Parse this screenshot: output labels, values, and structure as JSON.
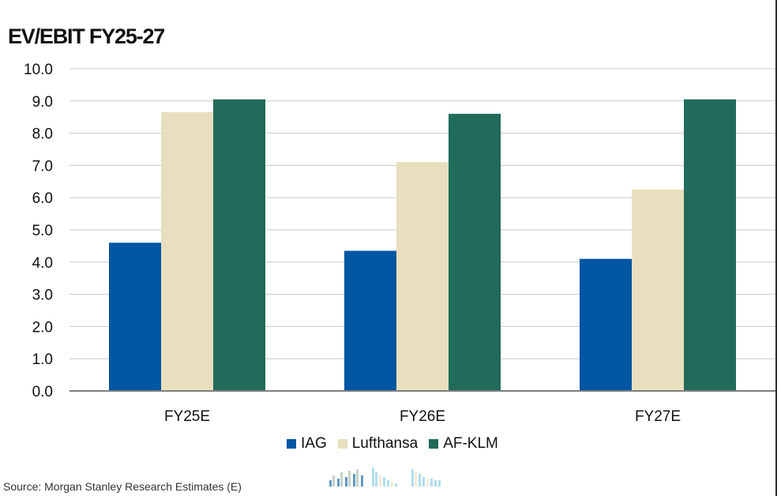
{
  "title": "EV/EBIT FY25-27",
  "source": "Source: Morgan Stanley Research Estimates (E)",
  "chart_data": {
    "type": "bar",
    "title": "EV/EBIT FY25-27",
    "categories": [
      "FY25E",
      "FY26E",
      "FY27E"
    ],
    "series": [
      {
        "name": "IAG",
        "color": "#0056a3",
        "values": [
          4.6,
          4.35,
          4.1
        ]
      },
      {
        "name": "Lufthansa",
        "color": "#e8dfbe",
        "values": [
          8.65,
          7.1,
          6.25
        ]
      },
      {
        "name": "AF-KLM",
        "color": "#216b5b",
        "values": [
          9.05,
          8.6,
          9.05
        ]
      }
    ],
    "ylim": [
      0,
      10
    ],
    "yticks": [
      "0.0",
      "1.0",
      "2.0",
      "3.0",
      "4.0",
      "5.0",
      "6.0",
      "7.0",
      "8.0",
      "9.0",
      "10.0"
    ],
    "xlabel": "",
    "ylabel": "",
    "grid": true,
    "legend_position": "bottom"
  }
}
